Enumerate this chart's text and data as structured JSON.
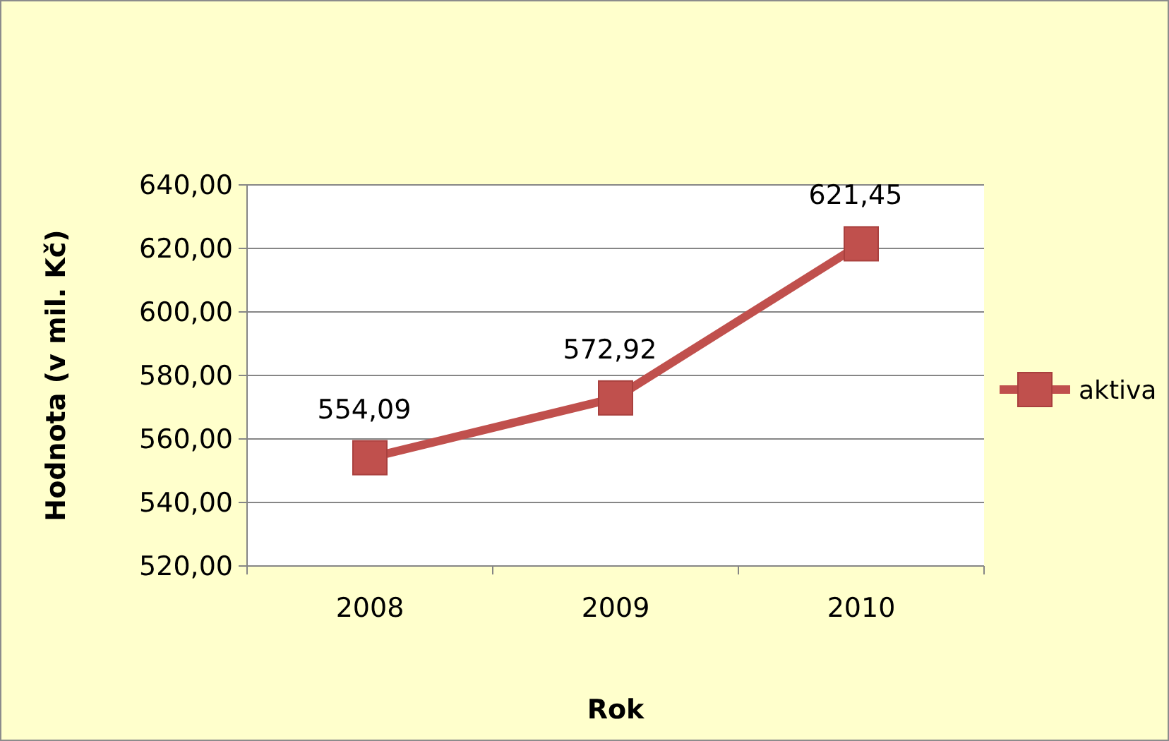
{
  "chart_data": {
    "type": "line",
    "xlabel": "Rok",
    "ylabel": "Hodnota (v mil. Kč)",
    "categories": [
      "2008",
      "2009",
      "2010"
    ],
    "series": [
      {
        "name": "aktiva",
        "color": "#c0504d",
        "values": [
          554.09,
          572.92,
          621.45
        ],
        "value_labels": [
          "554,09",
          "572,92",
          "621,45"
        ]
      }
    ],
    "ylim": [
      520,
      640
    ],
    "yticks": [
      {
        "value": 520,
        "label": "520,00"
      },
      {
        "value": 540,
        "label": "540,00"
      },
      {
        "value": 560,
        "label": "560,00"
      },
      {
        "value": 580,
        "label": "580,00"
      },
      {
        "value": 600,
        "label": "600,00"
      },
      {
        "value": 620,
        "label": "620,00"
      },
      {
        "value": 640,
        "label": "640,00"
      }
    ],
    "grid": "y",
    "legend": "right",
    "marker": "square",
    "line_style": "solid"
  }
}
